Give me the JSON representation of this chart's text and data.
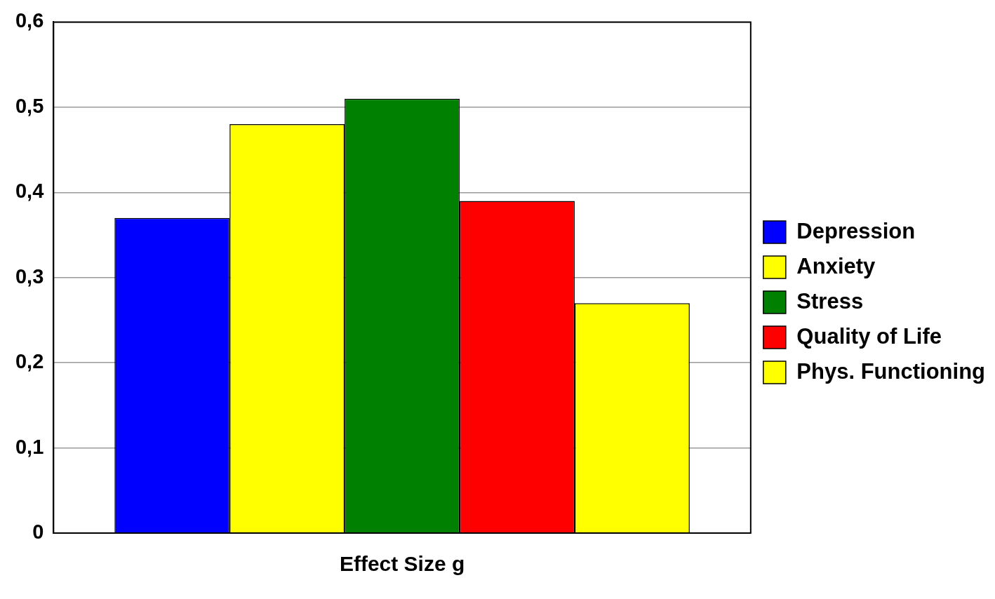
{
  "chart_data": {
    "type": "bar",
    "categories": [
      "Effect Size g"
    ],
    "series": [
      {
        "name": "Depression",
        "color": "#0000ff",
        "values": [
          0.37
        ]
      },
      {
        "name": "Anxiety",
        "color": "#ffff00",
        "values": [
          0.48
        ]
      },
      {
        "name": "Stress",
        "color": "#008000",
        "values": [
          0.51
        ]
      },
      {
        "name": "Quality of Life",
        "color": "#ff0000",
        "values": [
          0.39
        ]
      },
      {
        "name": "Phys. Functioning",
        "color": "#ffff00",
        "values": [
          0.27
        ]
      }
    ],
    "ylim": [
      0,
      0.6
    ],
    "yticks": [
      0,
      {
        "value": 0.1,
        "label": "0,1"
      },
      {
        "value": 0.2,
        "label": "0,2"
      },
      {
        "value": 0.3,
        "label": "0,3"
      },
      {
        "value": 0.4,
        "label": "0,4"
      },
      {
        "value": 0.5,
        "label": "0,5"
      },
      {
        "value": 0.6,
        "label": "0,6"
      }
    ],
    "grid": "y",
    "legend": "right"
  }
}
